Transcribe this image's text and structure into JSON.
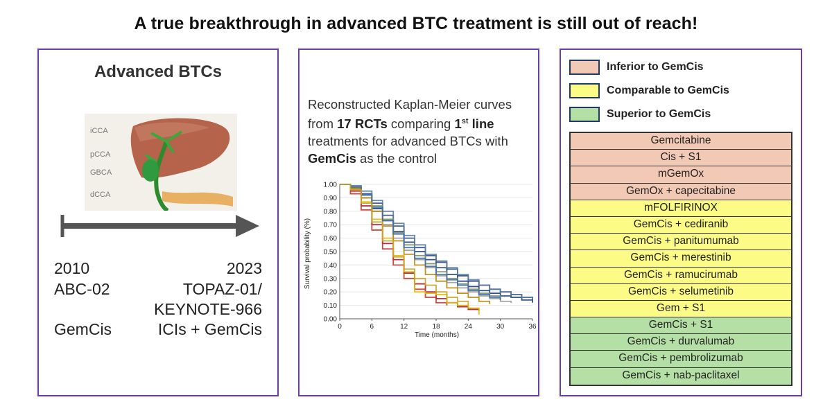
{
  "title": "A true breakthrough in advanced BTC treatment is still out of reach!",
  "left": {
    "heading": "Advanced BTCs",
    "liver_labels": [
      "iCCA",
      "pCCA",
      "GBCA",
      "dCCA"
    ],
    "start": {
      "year": "2010",
      "trial": "ABC-02",
      "regimen": "GemCis"
    },
    "end": {
      "year": "2023",
      "trial_line1": "TOPAZ-01/",
      "trial_line2": "KEYNOTE-966",
      "regimen": "ICIs + GemCis"
    }
  },
  "middle": {
    "desc_a": "Reconstructed Kaplan-Meier curves from ",
    "desc_rcts": "17 RCTs",
    "desc_b": " comparing ",
    "desc_first": "1",
    "desc_sup": "st",
    "desc_line": " line",
    "desc_c": " treatments for advanced BTCs with ",
    "desc_gemcis": "GemCis",
    "desc_d": " as the control"
  },
  "chart_data": {
    "type": "line",
    "title": "Reconstructed Kaplan-Meier curves",
    "xlabel": "Time (months)",
    "ylabel": "Survival probability (%)",
    "xlim": [
      0,
      36
    ],
    "ylim": [
      0,
      1
    ],
    "x_ticks": [
      "0",
      "6",
      "12",
      "18",
      "24",
      "30",
      "36"
    ],
    "y_ticks": [
      "0.00",
      "0.10",
      "0.20",
      "0.30",
      "0.40",
      "0.50",
      "0.60",
      "0.70",
      "0.80",
      "0.90",
      "1.00"
    ],
    "series": [
      {
        "name": "curve-1",
        "color": "#1f3f7a",
        "x": [
          0,
          2,
          4,
          6,
          8,
          10,
          12,
          14,
          16,
          18,
          20,
          22,
          24,
          26,
          28,
          30,
          32,
          34,
          36
        ],
        "y": [
          1.0,
          0.97,
          0.9,
          0.82,
          0.73,
          0.65,
          0.57,
          0.5,
          0.44,
          0.38,
          0.33,
          0.28,
          0.24,
          0.21,
          0.19,
          0.17,
          0.16,
          0.14,
          0.12
        ]
      },
      {
        "name": "curve-2",
        "color": "#2a4e8f",
        "x": [
          0,
          2,
          4,
          6,
          8,
          10,
          12,
          14,
          16,
          18,
          20,
          22,
          24,
          26,
          28,
          30,
          32,
          34,
          36
        ],
        "y": [
          1.0,
          0.98,
          0.93,
          0.86,
          0.77,
          0.69,
          0.6,
          0.53,
          0.47,
          0.42,
          0.37,
          0.32,
          0.28,
          0.25,
          0.22,
          0.2,
          0.18,
          0.16,
          0.14
        ]
      },
      {
        "name": "curve-3",
        "color": "#5a7a9a",
        "x": [
          0,
          2,
          4,
          6,
          8,
          10,
          12,
          14,
          16,
          18,
          20,
          22,
          24,
          26,
          28,
          30,
          32,
          34,
          36
        ],
        "y": [
          1.0,
          0.99,
          0.95,
          0.88,
          0.8,
          0.71,
          0.62,
          0.55,
          0.48,
          0.43,
          0.38,
          0.33,
          0.29,
          0.25,
          0.22,
          0.2,
          0.18,
          0.16,
          0.15
        ]
      },
      {
        "name": "curve-4",
        "color": "#7c8f6e",
        "x": [
          0,
          2,
          4,
          6,
          8,
          10,
          12,
          14,
          16,
          18,
          20,
          22,
          24,
          26,
          28,
          30
        ],
        "y": [
          1.0,
          0.98,
          0.92,
          0.84,
          0.74,
          0.64,
          0.55,
          0.47,
          0.41,
          0.35,
          0.3,
          0.26,
          0.22,
          0.19,
          0.17,
          0.15
        ]
      },
      {
        "name": "curve-5",
        "color": "#9a9a9a",
        "x": [
          0,
          2,
          4,
          6,
          8,
          10,
          12,
          14,
          16,
          18,
          20,
          22,
          24,
          26,
          28,
          30,
          32
        ],
        "y": [
          1.0,
          0.97,
          0.9,
          0.8,
          0.7,
          0.6,
          0.51,
          0.44,
          0.38,
          0.32,
          0.27,
          0.23,
          0.2,
          0.17,
          0.15,
          0.13,
          0.12
        ]
      },
      {
        "name": "curve-6",
        "color": "#a51d2d",
        "x": [
          0,
          2,
          4,
          6,
          8,
          10,
          12,
          14,
          16,
          18,
          20,
          22,
          24,
          26
        ],
        "y": [
          1.0,
          0.95,
          0.84,
          0.7,
          0.56,
          0.44,
          0.34,
          0.26,
          0.2,
          0.15,
          0.12,
          0.09,
          0.07,
          0.06
        ]
      },
      {
        "name": "curve-7",
        "color": "#c0392b",
        "x": [
          0,
          2,
          4,
          6,
          8,
          10,
          12,
          14,
          16,
          18,
          20
        ],
        "y": [
          1.0,
          0.93,
          0.81,
          0.66,
          0.52,
          0.4,
          0.3,
          0.22,
          0.16,
          0.12,
          0.1
        ]
      },
      {
        "name": "curve-8",
        "color": "#e6b800",
        "x": [
          0,
          2,
          4,
          6,
          8,
          10,
          12,
          14,
          16,
          18,
          20,
          22,
          24,
          26
        ],
        "y": [
          1.0,
          0.96,
          0.87,
          0.74,
          0.6,
          0.47,
          0.35,
          0.2,
          0.19,
          0.18,
          0.12,
          0.1,
          0.08,
          0.03
        ]
      },
      {
        "name": "curve-9",
        "color": "#b8860b",
        "x": [
          0,
          2,
          4,
          6,
          8,
          10,
          12,
          14,
          16,
          18,
          20,
          22,
          24,
          26,
          28
        ],
        "y": [
          1.0,
          0.97,
          0.9,
          0.8,
          0.69,
          0.58,
          0.48,
          0.4,
          0.33,
          0.28,
          0.23,
          0.19,
          0.16,
          0.13,
          0.11
        ]
      },
      {
        "name": "curve-10",
        "color": "#3a6ea5",
        "x": [
          0,
          2,
          4,
          6,
          8,
          10,
          12,
          14,
          16,
          18,
          20,
          22,
          24,
          26,
          28,
          30
        ],
        "y": [
          1.0,
          0.98,
          0.92,
          0.83,
          0.73,
          0.63,
          0.53,
          0.45,
          0.39,
          0.33,
          0.29,
          0.25,
          0.21,
          0.18,
          0.16,
          0.14
        ]
      },
      {
        "name": "curve-11",
        "color": "#c9a227",
        "x": [
          0,
          2,
          4,
          6,
          8,
          10,
          12,
          14,
          16,
          18,
          20,
          22,
          24
        ],
        "y": [
          1.0,
          0.96,
          0.86,
          0.72,
          0.58,
          0.46,
          0.37,
          0.3,
          0.25,
          0.2,
          0.16,
          0.13,
          0.1
        ]
      }
    ]
  },
  "legend": [
    {
      "label": "Inferior to GemCis",
      "color": "#f1c9b5"
    },
    {
      "label": "Comparable to GemCis",
      "color": "#fbfb86"
    },
    {
      "label": "Superior to GemCis",
      "color": "#b4e0a6"
    }
  ],
  "treatments": [
    {
      "label": "Gemcitabine",
      "color": "#f1c9b5"
    },
    {
      "label": "Cis + S1",
      "color": "#f1c9b5"
    },
    {
      "label": "mGemOx",
      "color": "#f1c9b5"
    },
    {
      "label": "GemOx + capecitabine",
      "color": "#f1c9b5"
    },
    {
      "label": "mFOLFIRINOX",
      "color": "#fbfb86"
    },
    {
      "label": "GemCis + cediranib",
      "color": "#fbfb86"
    },
    {
      "label": "GemCis + panitumumab",
      "color": "#fbfb86"
    },
    {
      "label": "GemCis + merestinib",
      "color": "#fbfb86"
    },
    {
      "label": "GemCis + ramucirumab",
      "color": "#fbfb86"
    },
    {
      "label": "GemCis + selumetinib",
      "color": "#fbfb86"
    },
    {
      "label": "Gem + S1",
      "color": "#fbfb86"
    },
    {
      "label": "GemCis + S1",
      "color": "#b4e0a6"
    },
    {
      "label": "GemCis + durvalumab",
      "color": "#b4e0a6"
    },
    {
      "label": "GemCis + pembrolizumab",
      "color": "#b4e0a6"
    },
    {
      "label": "GemCis + nab-paclitaxel",
      "color": "#b4e0a6"
    }
  ]
}
